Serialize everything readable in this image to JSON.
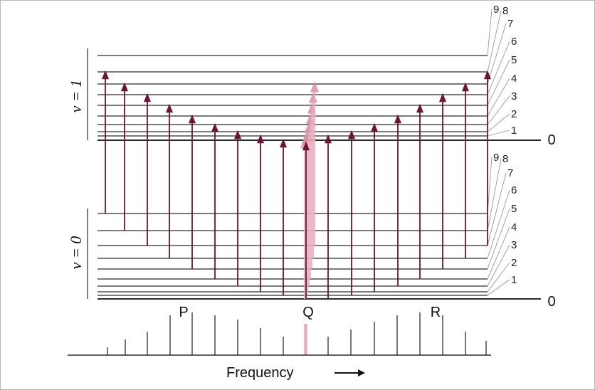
{
  "upper_band": {
    "label": "v = 1",
    "origin_label": "0",
    "rotational_labels": [
      "1",
      "2",
      "3",
      "4",
      "5",
      "6",
      "7",
      "8",
      "9"
    ]
  },
  "lower_band": {
    "label": "v = 0",
    "origin_label": "0",
    "rotational_labels": [
      "1",
      "2",
      "3",
      "4",
      "5",
      "6",
      "7",
      "8",
      "9"
    ]
  },
  "branches": {
    "p": "P",
    "q": "Q",
    "r": "R"
  },
  "axis": {
    "label": "Frequency"
  },
  "colors": {
    "arrow": "#6b1536",
    "q_branch": "#e7aebd",
    "level": "#2b2b2b"
  }
}
